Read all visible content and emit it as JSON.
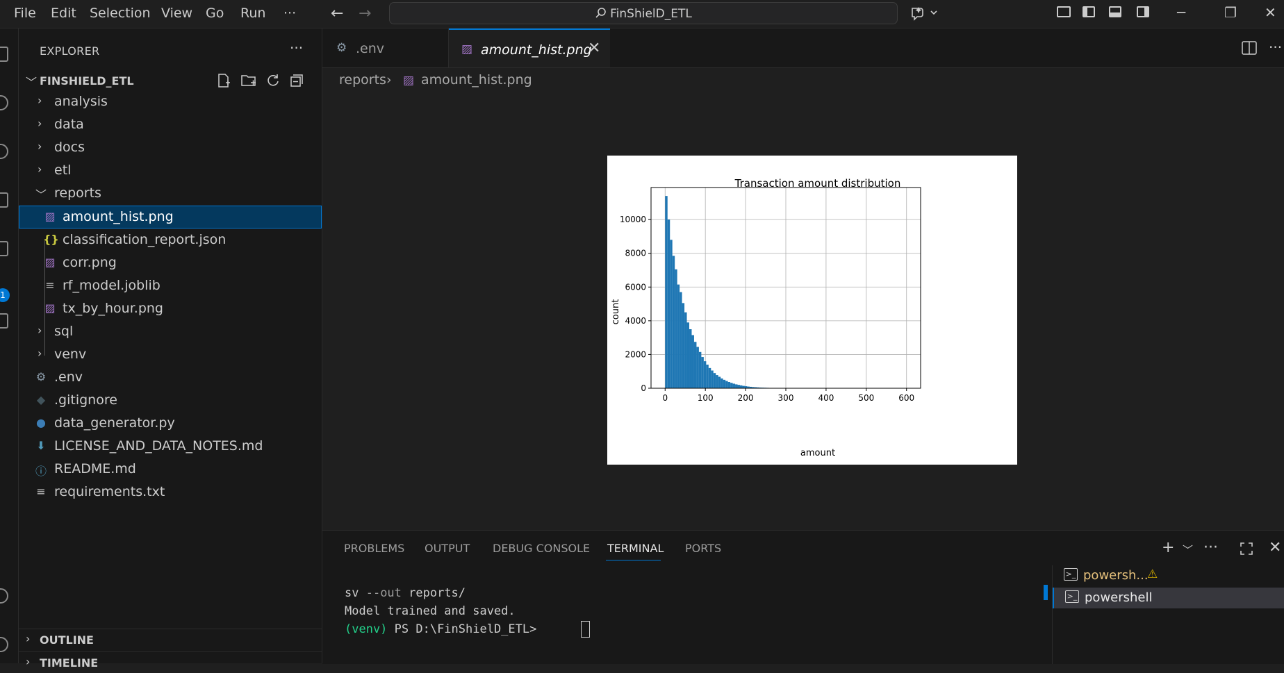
{
  "menu": [
    "File",
    "Edit",
    "Selection",
    "View",
    "Go",
    "Run",
    "···"
  ],
  "search": {
    "text": "FinShielD_ETL"
  },
  "sidebar": {
    "title": "EXPLORER",
    "more": "···",
    "root_label": "FINSHIELD_ETL",
    "items": [
      {
        "label": "analysis",
        "type": "folder"
      },
      {
        "label": "data",
        "type": "folder"
      },
      {
        "label": "docs",
        "type": "folder"
      },
      {
        "label": "etl",
        "type": "folder"
      },
      {
        "label": "reports",
        "type": "folder-open"
      },
      {
        "label": "amount_hist.png",
        "type": "image",
        "selected": true
      },
      {
        "label": "classification_report.json",
        "type": "json"
      },
      {
        "label": "corr.png",
        "type": "image"
      },
      {
        "label": "rf_model.joblib",
        "type": "text"
      },
      {
        "label": "tx_by_hour.png",
        "type": "image"
      },
      {
        "label": "sql",
        "type": "folder"
      },
      {
        "label": "venv",
        "type": "folder"
      },
      {
        "label": ".env",
        "type": "gear"
      },
      {
        "label": ".gitignore",
        "type": "git"
      },
      {
        "label": "data_generator.py",
        "type": "python"
      },
      {
        "label": "LICENSE_AND_DATA_NOTES.md",
        "type": "download"
      },
      {
        "label": "README.md",
        "type": "info"
      },
      {
        "label": "requirements.txt",
        "type": "text"
      }
    ],
    "outline_label": "OUTLINE",
    "timeline_label": "TIMELINE"
  },
  "activity": {
    "badge": "1"
  },
  "tabs": [
    {
      "label": ".env",
      "icon": "gear-icon"
    },
    {
      "label": "amount_hist.png",
      "icon": "image-icon",
      "active": true
    }
  ],
  "breadcrumb": {
    "folder": "reports",
    "file": "amount_hist.png"
  },
  "chart_data": {
    "type": "bar",
    "title": "Transaction amount distribution",
    "xlabel": "amount",
    "ylabel": "count",
    "xlim": [
      -35,
      635
    ],
    "ylim": [
      0,
      11900
    ],
    "xticks": [
      0,
      100,
      200,
      300,
      400,
      500,
      600
    ],
    "yticks": [
      0,
      2000,
      4000,
      6000,
      8000,
      10000
    ],
    "grid": true,
    "bin_width": 6,
    "bin_start": 0,
    "values": [
      11400,
      10000,
      8800,
      7850,
      7050,
      6150,
      5700,
      5050,
      4500,
      3900,
      3500,
      3150,
      2750,
      2450,
      2150,
      1850,
      1600,
      1400,
      1200,
      1050,
      900,
      780,
      680,
      580,
      500,
      430,
      370,
      320,
      270,
      230,
      200,
      170,
      140,
      120,
      100,
      85,
      70,
      60,
      50,
      40,
      35,
      30,
      25,
      20,
      18,
      15,
      12,
      10,
      8,
      6,
      5,
      5,
      4,
      3,
      3,
      2,
      2,
      2,
      1,
      1
    ],
    "color": "#1f77b4"
  },
  "panel": {
    "tabs": [
      "PROBLEMS",
      "OUTPUT",
      "DEBUG CONSOLE",
      "TERMINAL",
      "PORTS"
    ],
    "active_tab": "TERMINAL",
    "terminal_lines": [
      {
        "prefix": "sv ",
        "dim": "--out",
        "rest": " reports/"
      },
      {
        "text": "Model trained and saved."
      },
      {
        "venv": "(venv)",
        "prompt": " PS D:\\FinShielD_ETL> "
      }
    ],
    "terminals": [
      {
        "label": "powersh...",
        "warn": "⚠",
        "color": "#e5c07b"
      },
      {
        "label": "powershell",
        "active": true
      }
    ]
  }
}
